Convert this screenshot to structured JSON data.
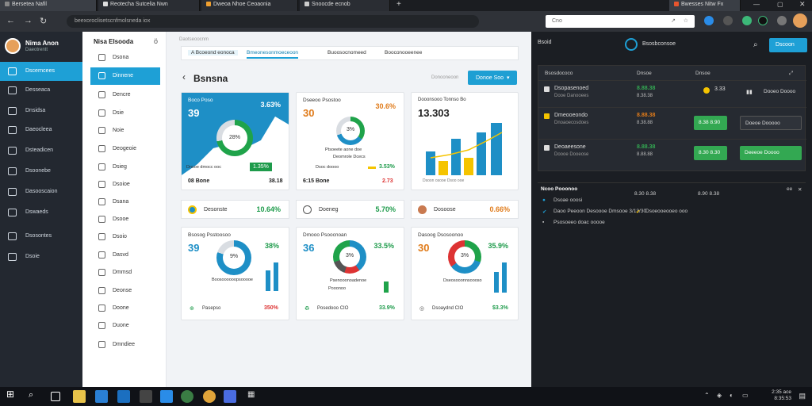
{
  "browser": {
    "tabs": [
      "Bersetea Nafil",
      "Reotecha Sutcelia Nwn",
      "Dweoa Nhoe Ceoaonia",
      "Snoocde ecnob"
    ],
    "url": "beexoroclisetscnfmolsneda iox",
    "search": "Cno",
    "right_tab": "Bwesses Nitw Fx"
  },
  "sidebar": {
    "user_name": "Nima Anon",
    "user_sub": "Daeotrentt",
    "items": [
      "Dscerncees",
      "Desseaca",
      "Dnsidsa",
      "Daeocleea",
      "Dsteadicen",
      "Dsoonebe",
      "Dasooscaion",
      "Dswaeds",
      "Dsosontes",
      "Dsoie"
    ]
  },
  "subnav": {
    "title": "Nisa Elsooda",
    "close": "ö",
    "items": [
      "Dsona",
      "Dinnene",
      "Dencre",
      "Dsie",
      "Noie",
      "Deogeoie",
      "Dsieg",
      "Dsoioe",
      "Dsana",
      "Dsooe",
      "Dsoio",
      "Dasvd",
      "Dmmsd",
      "Deonse",
      "Doone",
      "Duone",
      "Dmndiee"
    ]
  },
  "main": {
    "crumb": "Daotseoocnm",
    "tabs": [
      "A Bcoeond eonoca",
      "Bmeonesonmoeceoon",
      "Buoosocnomeed",
      "Booconooeenee"
    ],
    "title": "Bsnsna",
    "sub": "Donooneoon",
    "button": "Donoe Soo",
    "card1": {
      "title": "Boco Poso",
      "big": "39",
      "pct": "3.63%",
      "center": "28%",
      "foot_badge": "1.35%",
      "foot_label": "Dnsoe dmocc ooc",
      "bottom_left": "08 Bone",
      "bottom_right": "38.18"
    },
    "card2": {
      "title": "Dseeoo Psostoo",
      "big": "30",
      "pct": "30.6%",
      "center": "3%",
      "lbl": "Ptsoeete aone doe",
      "lbl2": "Deomrole Dcecs",
      "foot_label": "Dsoc doooo",
      "foot_val": "3.53%",
      "bottom_left": "6:15 Bone",
      "bottom_right": "2.73"
    },
    "card3": {
      "title": "Dooonsooo Tonnso Bo",
      "big": "13.303",
      "bars_label": "Dsoon osooe Dsoo ooe"
    },
    "strips": [
      {
        "label": "Desonste",
        "value": "10.64%"
      },
      {
        "label": "Doeneg",
        "value": "5.70%"
      },
      {
        "label": "Dosoose",
        "value": "0.66%"
      }
    ],
    "card4": {
      "title": "Bsosog Psstoosoo",
      "big": "39",
      "pct": "38%",
      "center": "9%",
      "lbl": "Boosoooooopsooooe",
      "foot_label": "Pasepso",
      "foot_val": "350%"
    },
    "card5": {
      "title": "Dmooo Psoocnoan",
      "big": "36",
      "pct": "33.5%",
      "center": "3%",
      "lbl": "Psenooonoadenoe",
      "lbl2": "Pooonoo",
      "foot_label": "Posedooo CIO",
      "foot_val": "33.9%"
    },
    "card6": {
      "title": "Dasoog Dsosoonoo",
      "big": "30",
      "pct": "35.9%",
      "center": "3%",
      "lbl": "Dseosooonnsoooso",
      "foot_label": "Dsoaydnd CIO",
      "foot_val": "$3.3%"
    }
  },
  "rpanel": {
    "logo": "Bsoid",
    "brand": "Bsosbconsoe",
    "button": "Dscoon",
    "headers": [
      "Bsosdococo",
      "Dnsoe",
      "Dnsoe"
    ],
    "rows": [
      {
        "name": "Dsopasenoed",
        "sub": "Dooe Danooees",
        "v1": "8.88.38",
        "v2": "8.38.38",
        "badge": "3.33",
        "btn": "Dooeo Doooo"
      },
      {
        "name": "Dmeooeondo",
        "sub": "Dnoaoecosdoes",
        "v1": "8.88.38",
        "v2": "8.38.88",
        "gbtn": "8.38 8.90",
        "dbtn": "Doeoe Dooooo"
      },
      {
        "name": "Deoaeesone",
        "sub": "Doooe Dooeose",
        "v1": "8.88.38",
        "v2": "8.88.88",
        "gbtn": "8.30 8.30",
        "gbtn2": "Deeeoe Doooo"
      }
    ],
    "alerts_title": "Ncoo Pooonoo",
    "alerts_v1": "8.30 8.38",
    "alerts_v2": "8.90 8.38",
    "alerts_ctrl": "ee",
    "alerts": [
      "Dsoae ooosi",
      "Daoo Peeoon Desoooe Dmsooe 3/13/30",
      "Psosoeeo doac ooooe"
    ],
    "alerts_extra": "Dsoeooeooeo ooo"
  },
  "taskbar": {
    "time": "2:35 ace",
    "date": "8:35:53"
  }
}
